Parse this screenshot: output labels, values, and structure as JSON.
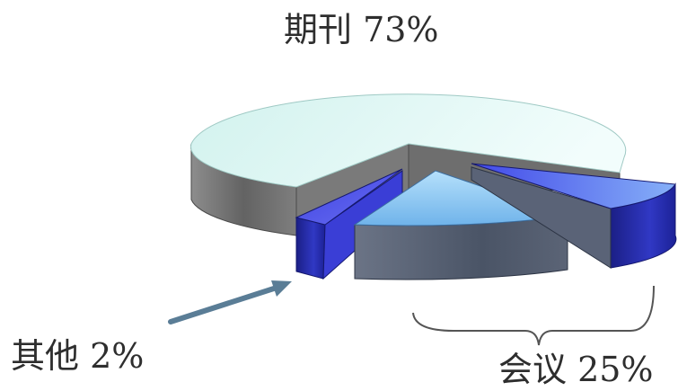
{
  "chart_data": {
    "type": "pie",
    "style": "3d-exploded",
    "slices": [
      {
        "label": "期刊",
        "value": 73,
        "color": "#e4f8f6",
        "side_color": "#707070"
      },
      {
        "label": "其他",
        "value": 2,
        "color": "#2d2fd6",
        "side_color": "#23258f"
      },
      {
        "label": "会议",
        "value": 25,
        "color": "#8ec9f2",
        "side_color": "#586274",
        "sub_color": "#4f67e6"
      }
    ],
    "annotations": {
      "qikan": "期刊 73%",
      "qita": "其他 2%",
      "huiyi": "会议 25%"
    },
    "arrow_color": "#5a7d96",
    "brace_color": "#555555"
  }
}
